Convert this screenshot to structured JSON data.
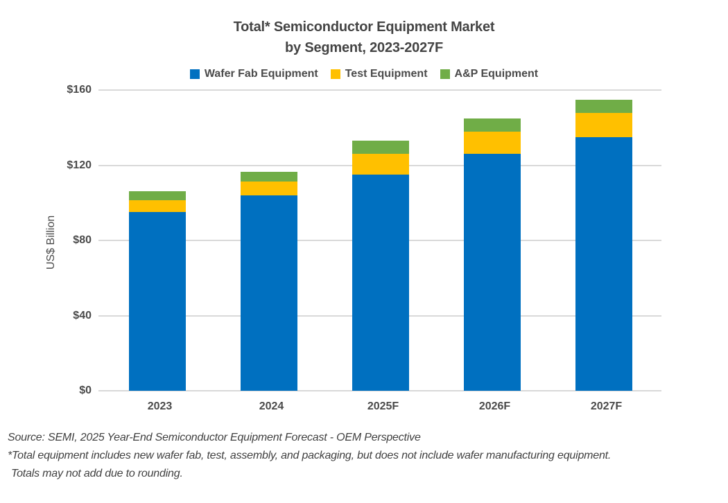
{
  "title": {
    "line1": "Total* Semiconductor Equipment Market",
    "line2": "by Segment, 2023-2027F"
  },
  "legend": {
    "items": [
      {
        "label": "Wafer Fab Equipment",
        "color": "#0070C0",
        "icon": "blue-square-swatch-icon"
      },
      {
        "label": "Test Equipment",
        "color": "#FFC000",
        "icon": "yellow-square-swatch-icon"
      },
      {
        "label": "A&P Equipment",
        "color": "#70AD47",
        "icon": "green-square-swatch-icon"
      }
    ]
  },
  "chart_data": {
    "type": "bar",
    "stacked": true,
    "title": "Total* Semiconductor Equipment Market by Segment, 2023-2027F",
    "categories": [
      "2023",
      "2024",
      "2025F",
      "2026F",
      "2027F"
    ],
    "series": [
      {
        "name": "Wafer Fab Equipment",
        "color": "#0070C0",
        "values": [
          95,
          104,
          115,
          126,
          135
        ]
      },
      {
        "name": "Test Equipment",
        "color": "#FFC000",
        "values": [
          6.5,
          7.5,
          11,
          12,
          13
        ]
      },
      {
        "name": "A&P Equipment",
        "color": "#70AD47",
        "values": [
          4.5,
          5,
          7,
          7,
          7
        ]
      }
    ],
    "totals_estimated": [
      106,
      116.5,
      133,
      145,
      155
    ],
    "xlabel": "",
    "ylabel": "US$ Billion",
    "ylim": [
      0,
      160
    ],
    "ytick_step": 40,
    "ytick_labels": [
      "$0",
      "$40",
      "$80",
      "$120",
      "$160"
    ],
    "grid": true,
    "gridline_color": "#D9D9D9",
    "legend_position": "top"
  },
  "footnotes": {
    "line1": "Source: SEMI, 2025 Year-End Semiconductor Equipment Forecast - OEM Perspective",
    "line2": "*Total equipment includes new wafer fab, test, assembly, and packaging, but does not include wafer manufacturing equipment.",
    "line3": "Totals may not add due to rounding."
  }
}
